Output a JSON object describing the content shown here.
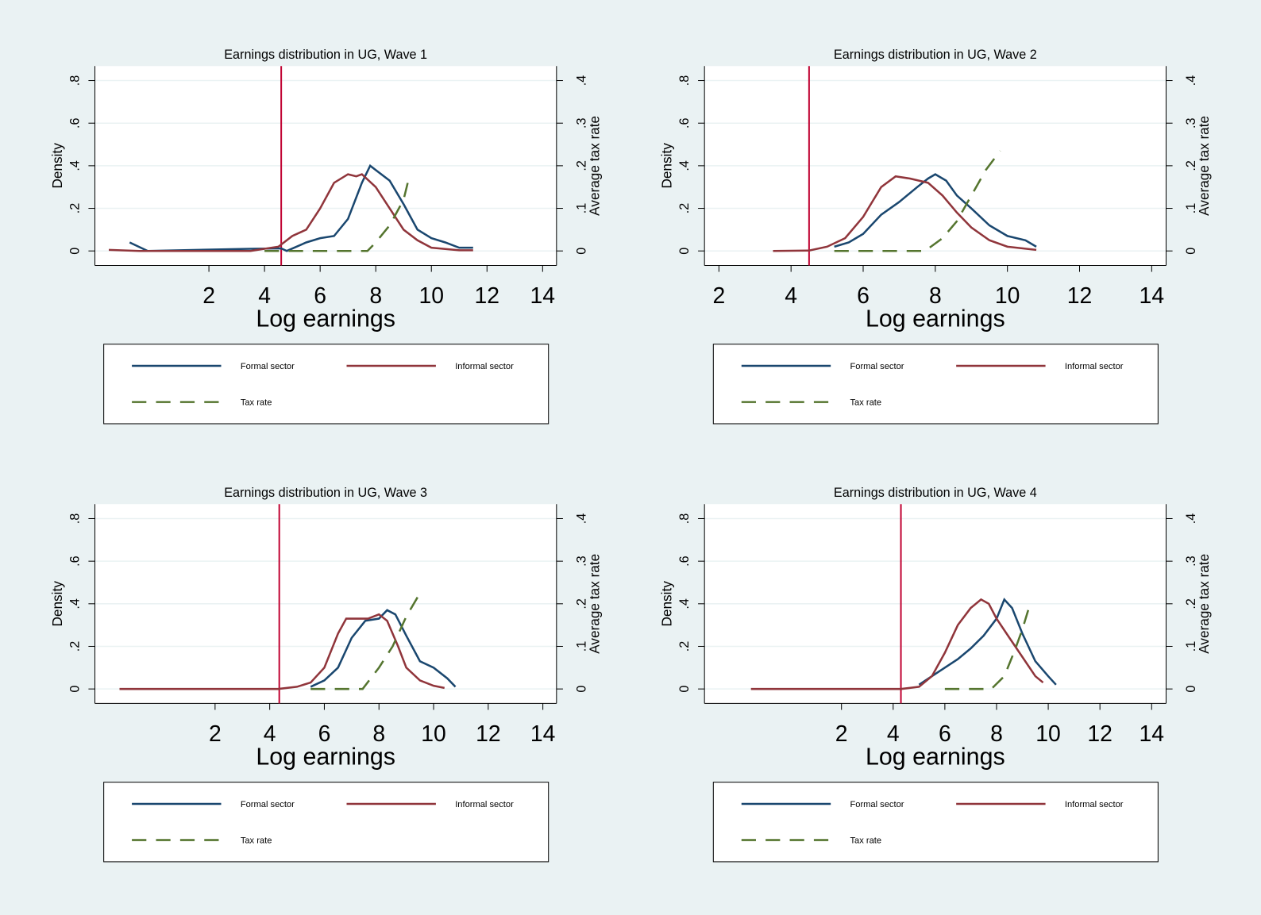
{
  "chart_data": [
    {
      "type": "line",
      "title": "Earnings distribution in UG, Wave 1",
      "x_label": "Log earnings",
      "y_label": "Density",
      "y2_label": "Average tax rate",
      "xlim": [
        -2.1,
        14.5
      ],
      "xticks": [
        2,
        4,
        6,
        8,
        10,
        12,
        14
      ],
      "ylim": [
        -0.068,
        0.868
      ],
      "yticks": [
        0,
        {
          "value": 0.2,
          "label": ".2"
        },
        {
          "value": 0.4,
          "label": ".4"
        },
        {
          "value": 0.6,
          "label": ".6"
        },
        {
          "value": 0.8,
          "label": ".8"
        }
      ],
      "y2lim": [
        -0.034,
        0.434
      ],
      "y2ticks": [
        0,
        {
          "value": 0.1,
          "label": ".1"
        },
        {
          "value": 0.2,
          "label": ".2"
        },
        {
          "value": 0.3,
          "label": ".3"
        },
        {
          "value": 0.4,
          "label": ".4"
        }
      ],
      "grid": true,
      "xline": 4.6,
      "xline_color": "#c10534",
      "series": [
        {
          "name": "Formal sector",
          "color": "#1a476f",
          "x": [
            -0.85,
            -0.2,
            3.5,
            4.6,
            4.8,
            5.5,
            6,
            6.5,
            7,
            7.5,
            7.8,
            8,
            8.5,
            9,
            9.5,
            10,
            10.5,
            11,
            11.5
          ],
          "values": [
            0.04,
            0,
            0.01,
            0.012,
            0,
            0.04,
            0.06,
            0.07,
            0.15,
            0.32,
            0.4,
            0.38,
            0.33,
            0.22,
            0.1,
            0.06,
            0.04,
            0.015,
            0.015
          ]
        },
        {
          "name": "Informal sector",
          "color": "#90353b",
          "x": [
            -1.6,
            -0.5,
            3.5,
            4,
            4.5,
            4.8,
            5,
            5.5,
            6,
            6.5,
            7,
            7.3,
            7.5,
            8,
            8.5,
            9,
            9.5,
            10,
            11,
            11.5
          ],
          "values": [
            0.005,
            0,
            0,
            0.01,
            0.02,
            0.05,
            0.07,
            0.1,
            0.2,
            0.32,
            0.36,
            0.35,
            0.36,
            0.3,
            0.2,
            0.1,
            0.05,
            0.015,
            0.003,
            0.003
          ]
        },
        {
          "name": "Tax rate",
          "color": "#55752f",
          "dash": true,
          "axis": "y2",
          "x": [
            4,
            7.7,
            8,
            8.5,
            9,
            9.15
          ],
          "values": [
            0,
            0,
            0.02,
            0.06,
            0.12,
            0.16
          ]
        }
      ]
    },
    {
      "type": "line",
      "title": "Earnings distribution in UG, Wave 2",
      "x_label": "Log earnings",
      "y_label": "Density",
      "y2_label": "Average tax rate",
      "xlim": [
        1.6,
        14.4
      ],
      "xticks": [
        2,
        4,
        6,
        8,
        10,
        12,
        14
      ],
      "ylim": [
        -0.068,
        0.868
      ],
      "yticks": [
        0,
        {
          "value": 0.2,
          "label": ".2"
        },
        {
          "value": 0.4,
          "label": ".4"
        },
        {
          "value": 0.6,
          "label": ".6"
        },
        {
          "value": 0.8,
          "label": ".8"
        }
      ],
      "y2lim": [
        -0.034,
        0.434
      ],
      "y2ticks": [
        0,
        {
          "value": 0.1,
          "label": ".1"
        },
        {
          "value": 0.2,
          "label": ".2"
        },
        {
          "value": 0.3,
          "label": ".3"
        },
        {
          "value": 0.4,
          "label": ".4"
        }
      ],
      "grid": true,
      "xline": 4.5,
      "xline_color": "#c10534",
      "series": [
        {
          "name": "Formal sector",
          "color": "#1a476f",
          "x": [
            5.2,
            5.6,
            6,
            6.5,
            7,
            7.5,
            7.8,
            8,
            8.3,
            8.6,
            9,
            9.5,
            10,
            10.5,
            10.8
          ],
          "values": [
            0.02,
            0.04,
            0.08,
            0.17,
            0.23,
            0.3,
            0.34,
            0.36,
            0.33,
            0.26,
            0.2,
            0.12,
            0.07,
            0.05,
            0.02
          ]
        },
        {
          "name": "Informal sector",
          "color": "#90353b",
          "x": [
            3.5,
            4.5,
            5,
            5.5,
            6,
            6.5,
            6.9,
            7.3,
            7.8,
            8.2,
            8.6,
            9,
            9.5,
            10,
            10.8
          ],
          "values": [
            0,
            0.002,
            0.02,
            0.06,
            0.16,
            0.3,
            0.35,
            0.34,
            0.32,
            0.26,
            0.18,
            0.11,
            0.05,
            0.02,
            0.005
          ]
        },
        {
          "name": "Tax rate",
          "color": "#55752f",
          "dash": true,
          "axis": "y2",
          "x": [
            5.2,
            7.7,
            7.8,
            8.2,
            8.6,
            9,
            9.4,
            9.8
          ],
          "values": [
            0,
            0,
            0.005,
            0.03,
            0.07,
            0.13,
            0.19,
            0.235
          ]
        }
      ]
    },
    {
      "type": "line",
      "title": "Earnings distribution in UG, Wave 3",
      "x_label": "Log earnings",
      "y_label": "Density",
      "y2_label": "Average tax rate",
      "xlim": [
        -2.4,
        14.5
      ],
      "xticks": [
        2,
        4,
        6,
        8,
        10,
        12,
        14
      ],
      "ylim": [
        -0.068,
        0.868
      ],
      "yticks": [
        0,
        {
          "value": 0.2,
          "label": ".2"
        },
        {
          "value": 0.4,
          "label": ".4"
        },
        {
          "value": 0.6,
          "label": ".6"
        },
        {
          "value": 0.8,
          "label": ".8"
        }
      ],
      "y2lim": [
        -0.034,
        0.434
      ],
      "y2ticks": [
        0,
        {
          "value": 0.1,
          "label": ".1"
        },
        {
          "value": 0.2,
          "label": ".2"
        },
        {
          "value": 0.3,
          "label": ".3"
        },
        {
          "value": 0.4,
          "label": ".4"
        }
      ],
      "grid": true,
      "xline": 4.35,
      "xline_color": "#c10534",
      "series": [
        {
          "name": "Formal sector",
          "color": "#1a476f",
          "x": [
            5.5,
            6,
            6.5,
            7,
            7.5,
            8,
            8.3,
            8.6,
            9,
            9.5,
            10,
            10.5,
            10.8
          ],
          "values": [
            0.01,
            0.04,
            0.1,
            0.24,
            0.32,
            0.33,
            0.37,
            0.35,
            0.25,
            0.13,
            0.1,
            0.05,
            0.01
          ]
        },
        {
          "name": "Informal sector",
          "color": "#90353b",
          "x": [
            -1.5,
            4.3,
            5,
            5.5,
            6,
            6.5,
            6.8,
            7.2,
            7.6,
            8,
            8.3,
            8.7,
            9,
            9.5,
            10,
            10.4
          ],
          "values": [
            0,
            0,
            0.01,
            0.03,
            0.1,
            0.26,
            0.33,
            0.33,
            0.33,
            0.35,
            0.32,
            0.2,
            0.1,
            0.04,
            0.015,
            0.005
          ]
        },
        {
          "name": "Tax rate",
          "color": "#55752f",
          "dash": true,
          "axis": "y2",
          "x": [
            5.5,
            7.4,
            8,
            8.5,
            9,
            9.5
          ],
          "values": [
            0,
            0,
            0.05,
            0.1,
            0.17,
            0.225
          ]
        }
      ]
    },
    {
      "type": "line",
      "title": "Earnings distribution in UG, Wave 4",
      "x_label": "Log earnings",
      "y_label": "Density",
      "y2_label": "Average tax rate",
      "xlim": [
        -3.3,
        14.56
      ],
      "xticks": [
        2,
        4,
        6,
        8,
        10,
        12,
        14
      ],
      "ylim": [
        -0.068,
        0.868
      ],
      "yticks": [
        0,
        {
          "value": 0.2,
          "label": ".2"
        },
        {
          "value": 0.4,
          "label": ".4"
        },
        {
          "value": 0.6,
          "label": ".6"
        },
        {
          "value": 0.8,
          "label": ".8"
        }
      ],
      "y2lim": [
        -0.034,
        0.434
      ],
      "y2ticks": [
        0,
        {
          "value": 0.1,
          "label": ".1"
        },
        {
          "value": 0.2,
          "label": ".2"
        },
        {
          "value": 0.3,
          "label": ".3"
        },
        {
          "value": 0.4,
          "label": ".4"
        }
      ],
      "grid": true,
      "xline": 4.3,
      "xline_color": "#c10534",
      "series": [
        {
          "name": "Formal sector",
          "color": "#1a476f",
          "x": [
            5,
            5.5,
            6,
            6.5,
            7,
            7.5,
            8,
            8.3,
            8.6,
            9,
            9.5,
            10,
            10.3
          ],
          "values": [
            0.02,
            0.06,
            0.1,
            0.14,
            0.19,
            0.25,
            0.33,
            0.42,
            0.38,
            0.26,
            0.13,
            0.06,
            0.02
          ]
        },
        {
          "name": "Informal sector",
          "color": "#90353b",
          "x": [
            -1.5,
            4.3,
            5,
            5.5,
            6,
            6.5,
            7,
            7.4,
            7.7,
            8,
            8.5,
            9,
            9.5,
            9.8
          ],
          "values": [
            0,
            0,
            0.01,
            0.06,
            0.17,
            0.3,
            0.38,
            0.42,
            0.4,
            0.33,
            0.24,
            0.15,
            0.06,
            0.03
          ]
        },
        {
          "name": "Tax rate",
          "color": "#55752f",
          "dash": true,
          "axis": "y2",
          "x": [
            6,
            7.8,
            8.3,
            8.7,
            9,
            9.3
          ],
          "values": [
            0,
            0,
            0.03,
            0.09,
            0.14,
            0.2
          ]
        }
      ]
    }
  ]
}
